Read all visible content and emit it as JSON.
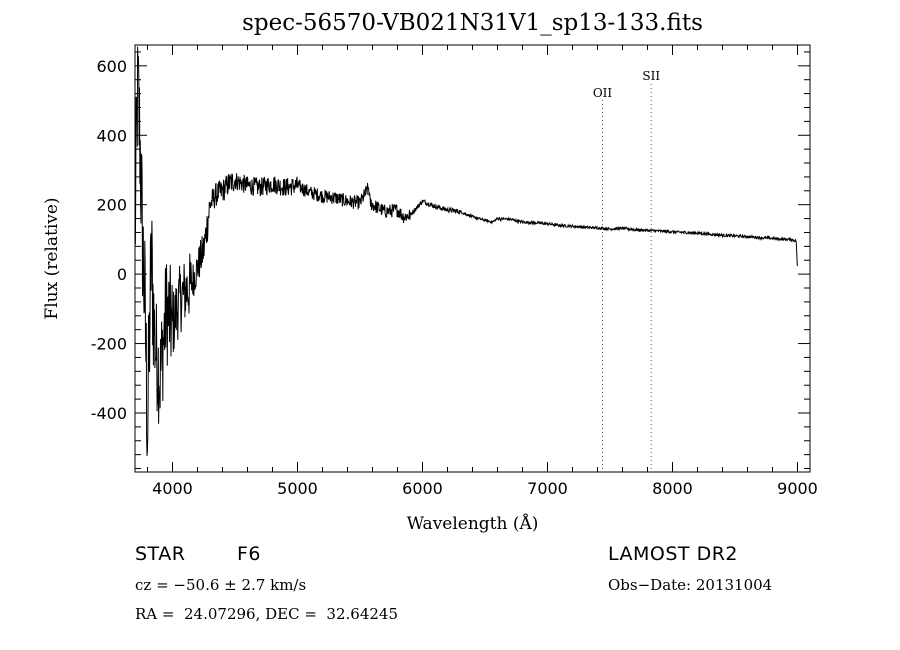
{
  "chart_data": {
    "type": "line",
    "title": "spec-56570-VB021N31V1_sp13-133.fits",
    "xlabel": "Wavelength (Å)",
    "ylabel": "Flux (relative)",
    "xlim": [
      3700,
      9100
    ],
    "ylim": [
      -570,
      660
    ],
    "x_ticks": [
      4000,
      5000,
      6000,
      7000,
      8000,
      9000
    ],
    "y_ticks": [
      -400,
      -200,
      0,
      200,
      400,
      600
    ],
    "grid": false,
    "series": [
      {
        "x": [
          3700,
          3720,
          3740,
          3760,
          3780,
          3800,
          3830,
          3860,
          3900,
          3950,
          4000,
          4050,
          4100,
          4150,
          4200,
          4250,
          4300,
          4350,
          4400,
          4450,
          4500,
          4600,
          4700,
          4800,
          4900,
          5000,
          5100,
          5200,
          5300,
          5400,
          5500,
          5570,
          5580,
          5600,
          5700,
          5800,
          5850,
          5900,
          6000,
          6100,
          6200,
          6300,
          6400,
          6500,
          6560,
          6600,
          6700,
          6800,
          6900,
          7000,
          7100,
          7200,
          7300,
          7400,
          7500,
          7600,
          7700,
          7800,
          7900,
          8000,
          8100,
          8200,
          8300,
          8400,
          8500,
          8600,
          8700,
          8800,
          8900,
          8950,
          8990,
          9000
        ],
        "y": [
          100,
          550,
          380,
          100,
          -100,
          -450,
          50,
          -200,
          -300,
          -100,
          -150,
          -80,
          -50,
          -30,
          20,
          70,
          200,
          230,
          240,
          260,
          270,
          255,
          250,
          260,
          250,
          255,
          235,
          225,
          220,
          210,
          205,
          250,
          205,
          200,
          180,
          185,
          165,
          170,
          210,
          195,
          185,
          180,
          165,
          155,
          150,
          160,
          158,
          150,
          148,
          145,
          140,
          138,
          135,
          133,
          130,
          132,
          128,
          126,
          124,
          122,
          120,
          118,
          115,
          112,
          110,
          108,
          105,
          103,
          100,
          100,
          95,
          5
        ]
      }
    ],
    "annotations": [
      {
        "text": "OII",
        "x": 7440
      },
      {
        "text": "SII",
        "x": 7830
      }
    ]
  },
  "info": {
    "object_type": "STAR",
    "subclass": "F6",
    "cz": "cz = −50.6 ± 2.7 km/s",
    "coords": "RA =  24.07296, DEC =  32.64245",
    "survey": "LAMOST DR2",
    "obs_date": "Obs−Date: 20131004"
  }
}
